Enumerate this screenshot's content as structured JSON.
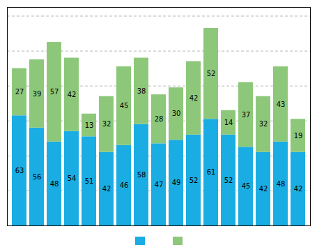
{
  "chart_data": {
    "type": "bar",
    "stacked": true,
    "categories": [
      null,
      null,
      null,
      null,
      null,
      null,
      null,
      null,
      null,
      null,
      null,
      null,
      null,
      null,
      null,
      null,
      null
    ],
    "series": [
      {
        "color": "#1aade3",
        "values": [
          63,
          56,
          48,
          54,
          51,
          42,
          46,
          58,
          47,
          49,
          52,
          61,
          52,
          45,
          42,
          48,
          42
        ]
      },
      {
        "color": "#8dc87a",
        "values": [
          27,
          39,
          57,
          42,
          13,
          32,
          45,
          38,
          28,
          30,
          42,
          52,
          14,
          37,
          32,
          43,
          19
        ]
      }
    ],
    "ylim": [
      0,
      125
    ],
    "yticks": [
      20,
      40,
      60,
      80,
      100,
      120
    ],
    "grid": true,
    "data_labels": true,
    "tick_labels": false,
    "legend": "bottom"
  }
}
